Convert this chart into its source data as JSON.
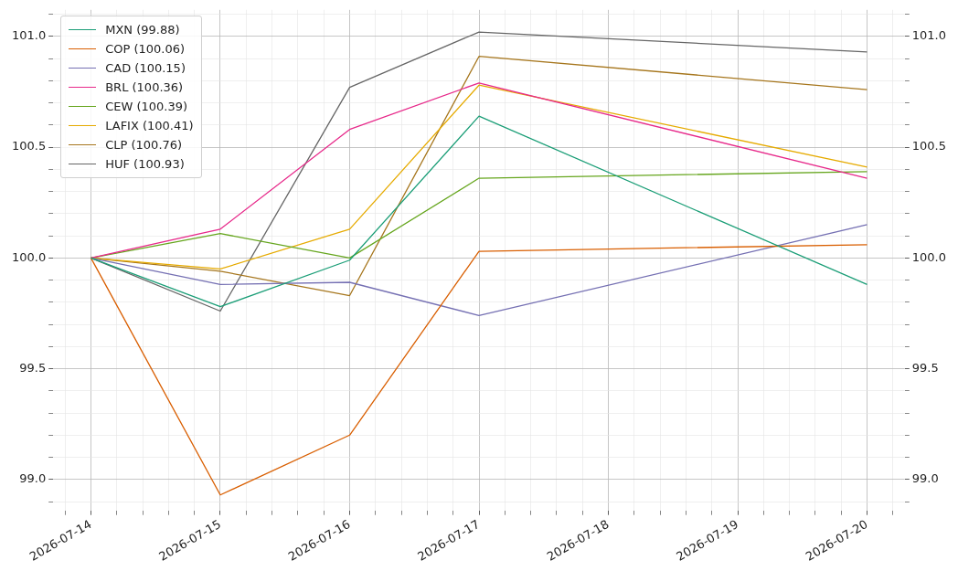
{
  "chart_data": {
    "type": "line",
    "x": [
      "2026-07-14",
      "2026-07-15",
      "2026-07-16",
      "2026-07-17",
      "2026-07-20"
    ],
    "series": [
      {
        "name": "MXN (99.88)",
        "color": "#1b9e77",
        "values": [
          100,
          99.78,
          99.99,
          100.64,
          99.88
        ]
      },
      {
        "name": "COP (100.06)",
        "color": "#d95f02",
        "values": [
          100,
          98.93,
          99.2,
          100.03,
          100.06
        ]
      },
      {
        "name": "CAD (100.15)",
        "color": "#7570b3",
        "values": [
          100,
          99.88,
          99.89,
          99.74,
          100.15
        ]
      },
      {
        "name": "BRL (100.36)",
        "color": "#e7298a",
        "values": [
          100,
          100.13,
          100.58,
          100.79,
          100.36
        ]
      },
      {
        "name": "CEW (100.39)",
        "color": "#66a61e",
        "values": [
          100,
          100.11,
          100.0,
          100.36,
          100.39
        ]
      },
      {
        "name": "LAFIX (100.41)",
        "color": "#e6ab02",
        "values": [
          100,
          99.95,
          100.13,
          100.78,
          100.41
        ]
      },
      {
        "name": "CLP (100.76)",
        "color": "#a6761d",
        "values": [
          100,
          99.94,
          99.83,
          100.91,
          100.76
        ]
      },
      {
        "name": "HUF (100.93)",
        "color": "#666666",
        "values": [
          100,
          99.76,
          100.77,
          101.02,
          100.93
        ]
      }
    ],
    "xlim": [
      "2026-07-13T17:00",
      "2026-07-20T07:00"
    ],
    "xticks": [
      {
        "value": "2026-07-13T19:12",
        "label": null
      },
      {
        "value": "2026-07-14",
        "label": "2026-07-14"
      },
      {
        "value": "2026-07-14T04:48",
        "label": null
      },
      {
        "value": "2026-07-14T09:36",
        "label": null
      },
      {
        "value": "2026-07-14T14:24",
        "label": null
      },
      {
        "value": "2026-07-14T19:12",
        "label": null
      },
      {
        "value": "2026-07-15",
        "label": "2026-07-15"
      },
      {
        "value": "2026-07-15T04:48",
        "label": null
      },
      {
        "value": "2026-07-15T09:36",
        "label": null
      },
      {
        "value": "2026-07-15T14:24",
        "label": null
      },
      {
        "value": "2026-07-15T19:12",
        "label": null
      },
      {
        "value": "2026-07-16",
        "label": "2026-07-16"
      },
      {
        "value": "2026-07-16T04:48",
        "label": null
      },
      {
        "value": "2026-07-16T09:36",
        "label": null
      },
      {
        "value": "2026-07-16T14:24",
        "label": null
      },
      {
        "value": "2026-07-16T19:12",
        "label": null
      },
      {
        "value": "2026-07-17",
        "label": "2026-07-17"
      },
      {
        "value": "2026-07-17T04:48",
        "label": null
      },
      {
        "value": "2026-07-17T09:36",
        "label": null
      },
      {
        "value": "2026-07-17T14:24",
        "label": null
      },
      {
        "value": "2026-07-17T19:12",
        "label": null
      },
      {
        "value": "2026-07-18",
        "label": "2026-07-18"
      },
      {
        "value": "2026-07-18T04:48",
        "label": null
      },
      {
        "value": "2026-07-18T09:36",
        "label": null
      },
      {
        "value": "2026-07-18T14:24",
        "label": null
      },
      {
        "value": "2026-07-18T19:12",
        "label": null
      },
      {
        "value": "2026-07-19",
        "label": "2026-07-19"
      },
      {
        "value": "2026-07-19T04:48",
        "label": null
      },
      {
        "value": "2026-07-19T09:36",
        "label": null
      },
      {
        "value": "2026-07-19T14:24",
        "label": null
      },
      {
        "value": "2026-07-19T19:12",
        "label": null
      },
      {
        "value": "2026-07-20",
        "label": "2026-07-20"
      },
      {
        "value": "2026-07-20T04:48",
        "label": null
      }
    ],
    "ylim": [
      98.86,
      101.12
    ],
    "yticks": [
      {
        "value": 98.9,
        "label": null
      },
      {
        "value": 99.0,
        "label": "99.0"
      },
      {
        "value": 99.1,
        "label": null
      },
      {
        "value": 99.2,
        "label": null
      },
      {
        "value": 99.3,
        "label": null
      },
      {
        "value": 99.4,
        "label": null
      },
      {
        "value": 99.5,
        "label": "99.5"
      },
      {
        "value": 99.6,
        "label": null
      },
      {
        "value": 99.7,
        "label": null
      },
      {
        "value": 99.8,
        "label": null
      },
      {
        "value": 99.9,
        "label": null
      },
      {
        "value": 100.0,
        "label": "100.0"
      },
      {
        "value": 100.1,
        "label": null
      },
      {
        "value": 100.2,
        "label": null
      },
      {
        "value": 100.3,
        "label": null
      },
      {
        "value": 100.4,
        "label": null
      },
      {
        "value": 100.5,
        "label": "100.5"
      },
      {
        "value": 100.6,
        "label": null
      },
      {
        "value": 100.7,
        "label": null
      },
      {
        "value": 100.8,
        "label": null
      },
      {
        "value": 100.9,
        "label": null
      },
      {
        "value": 101.0,
        "label": "101.0"
      },
      {
        "value": 101.1,
        "label": null
      }
    ],
    "y2lim": [
      98.86,
      101.12
    ],
    "y2ticks": [
      {
        "value": 98.9,
        "label": null
      },
      {
        "value": 99.0,
        "label": "99.0"
      },
      {
        "value": 99.1,
        "label": null
      },
      {
        "value": 99.2,
        "label": null
      },
      {
        "value": 99.3,
        "label": null
      },
      {
        "value": 99.4,
        "label": null
      },
      {
        "value": 99.5,
        "label": "99.5"
      },
      {
        "value": 99.6,
        "label": null
      },
      {
        "value": 99.7,
        "label": null
      },
      {
        "value": 99.8,
        "label": null
      },
      {
        "value": 99.9,
        "label": null
      },
      {
        "value": 100.0,
        "label": "100.0"
      },
      {
        "value": 100.1,
        "label": null
      },
      {
        "value": 100.2,
        "label": null
      },
      {
        "value": 100.3,
        "label": null
      },
      {
        "value": 100.4,
        "label": null
      },
      {
        "value": 100.5,
        "label": "100.5"
      },
      {
        "value": 100.6,
        "label": null
      },
      {
        "value": 100.7,
        "label": null
      },
      {
        "value": 100.8,
        "label": null
      },
      {
        "value": 100.9,
        "label": null
      },
      {
        "value": 101.0,
        "label": "101.0"
      },
      {
        "value": 101.1,
        "label": null
      }
    ],
    "grid": true,
    "legend": "top left",
    "marker": "none",
    "line_style": "solid"
  }
}
